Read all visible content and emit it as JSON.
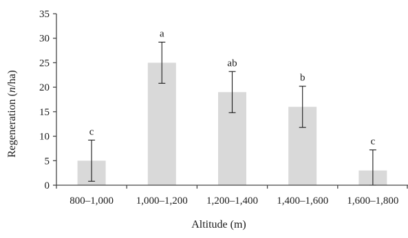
{
  "chart_data": {
    "type": "bar",
    "categories": [
      "800–1,000",
      "1,000–1,200",
      "1,200–1,400",
      "1,400–1,600",
      "1,600–1,800"
    ],
    "values": [
      5,
      25,
      19,
      16,
      3
    ],
    "error": [
      4.2,
      4.2,
      4.2,
      4.2,
      4.2
    ],
    "significance_letters": [
      "c",
      "a",
      "ab",
      "b",
      "c"
    ],
    "xlabel": "Altitude (m)",
    "ylabel_prefix": "Regeneration (",
    "ylabel_italic": "n",
    "ylabel_suffix": "/ha)",
    "ylim": [
      0,
      35
    ],
    "yticks": [
      0,
      5,
      10,
      15,
      20,
      25,
      30,
      35
    ],
    "grid": false,
    "legend": "none",
    "bar_color": "#d9d9d9"
  }
}
